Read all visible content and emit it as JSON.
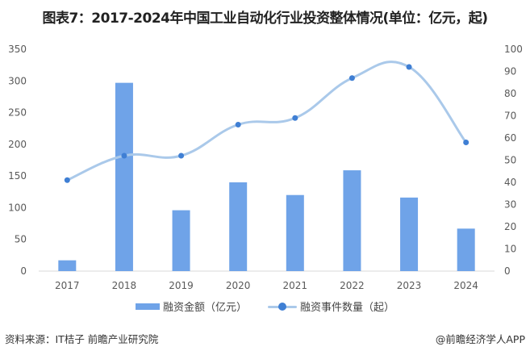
{
  "title": "图表7：2017-2024年中国工业自动化行业投资整体情况(单位：亿元，起)",
  "legend": {
    "bar_label": "融资金额（亿元）",
    "line_label": "融资事件数量（起）"
  },
  "footer": {
    "source": "资料来源：IT桔子 前瞻产业研究院",
    "brand": "@前瞻经济学人APP"
  },
  "colors": {
    "bar": "#6fa3e8",
    "line": "#aac9ea",
    "marker": "#3f7fd4",
    "axis": "#d9d9d9"
  },
  "chart_data": {
    "type": "bar+line",
    "title": "图表7：2017-2024年中国工业自动化行业投资整体情况(单位：亿元，起)",
    "categories": [
      "2017",
      "2018",
      "2019",
      "2020",
      "2021",
      "2022",
      "2023",
      "2024"
    ],
    "series": [
      {
        "name": "融资金额（亿元）",
        "type": "bar",
        "axis": "left",
        "values": [
          17,
          297,
          96,
          140,
          120,
          159,
          116,
          67
        ]
      },
      {
        "name": "融资事件数量（起）",
        "type": "line",
        "axis": "right",
        "smooth": true,
        "values": [
          41,
          52,
          52,
          66,
          69,
          87,
          92,
          58
        ]
      }
    ],
    "left_axis": {
      "ylim": [
        0,
        350
      ],
      "ticks": [
        0,
        50,
        100,
        150,
        200,
        250,
        300,
        350
      ]
    },
    "right_axis": {
      "ylim": [
        0,
        100
      ],
      "ticks": [
        0,
        10,
        20,
        30,
        40,
        50,
        60,
        70,
        80,
        90,
        100
      ]
    },
    "xlabel": "",
    "ylabel": "",
    "grid": false,
    "legend_position": "bottom"
  }
}
